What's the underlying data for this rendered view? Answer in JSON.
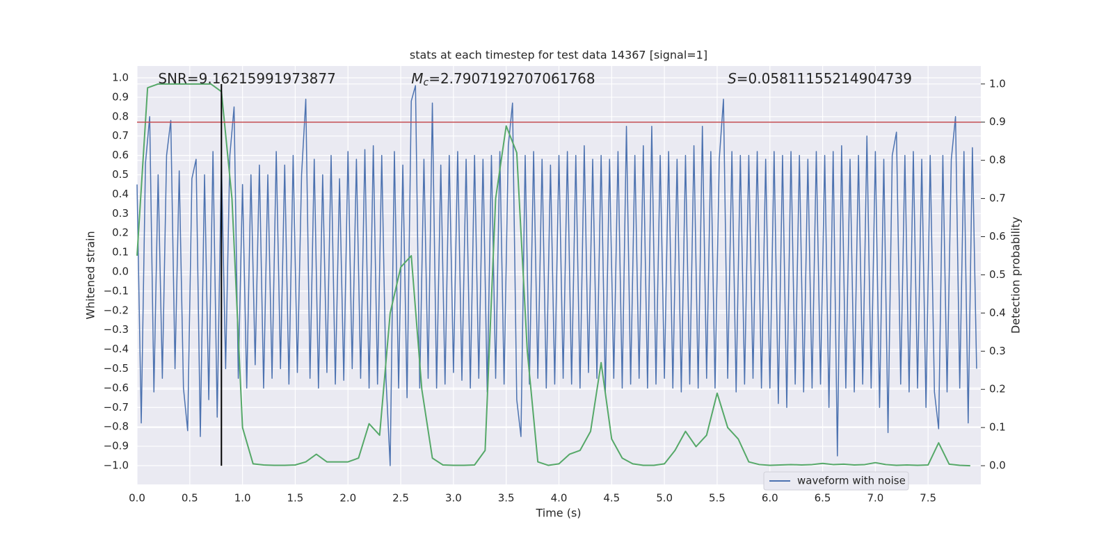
{
  "chart_data": {
    "type": "line",
    "title": "stats at each timestep for test data 14367 [signal=1]",
    "x_label": "Time (s)",
    "y_label": "Whitened strain",
    "y2_label": "Detection probability",
    "annotations": [
      {
        "text": "SNR=9.16215991973877",
        "x": 0.2,
        "y": 1.0
      },
      {
        "symbol": "M",
        "subscript": "c",
        "text": "=2.7907192707061768",
        "x": 2.6,
        "y": 1.0
      },
      {
        "symbol": "S",
        "text": "=0.05811155214904739",
        "x": 5.6,
        "y": 1.0
      }
    ],
    "legend": "lower right",
    "grid": true,
    "xlim": [
      0,
      8
    ],
    "ylim": [
      -1.097,
      1.061
    ],
    "y2lim": [
      -0.049,
      1.047
    ],
    "xticks": [
      {
        "value": 0,
        "label": "0.0"
      },
      {
        "value": 0.5,
        "label": "0.5"
      },
      {
        "value": 1,
        "label": "1.0"
      },
      {
        "value": 1.5,
        "label": "1.5"
      },
      {
        "value": 2,
        "label": "2.0"
      },
      {
        "value": 2.5,
        "label": "2.5"
      },
      {
        "value": 3,
        "label": "3.0"
      },
      {
        "value": 3.5,
        "label": "3.5"
      },
      {
        "value": 4,
        "label": "4.0"
      },
      {
        "value": 4.5,
        "label": "4.5"
      },
      {
        "value": 5,
        "label": "5.0"
      },
      {
        "value": 5.5,
        "label": "5.5"
      },
      {
        "value": 6,
        "label": "6.0"
      },
      {
        "value": 6.5,
        "label": "6.5"
      },
      {
        "value": 7,
        "label": "7.0"
      },
      {
        "value": 7.5,
        "label": "7.5"
      }
    ],
    "yticks": [
      {
        "value": -1,
        "label": "−1.0"
      },
      {
        "value": -0.9,
        "label": "−0.9"
      },
      {
        "value": -0.8,
        "label": "−0.8"
      },
      {
        "value": -0.7,
        "label": "−0.7"
      },
      {
        "value": -0.6,
        "label": "−0.6"
      },
      {
        "value": -0.5,
        "label": "−0.5"
      },
      {
        "value": -0.4,
        "label": "−0.4"
      },
      {
        "value": -0.3,
        "label": "−0.3"
      },
      {
        "value": -0.2,
        "label": "−0.2"
      },
      {
        "value": -0.1,
        "label": "−0.1"
      },
      {
        "value": 0,
        "label": "0.0"
      },
      {
        "value": 0.1,
        "label": "0.1"
      },
      {
        "value": 0.2,
        "label": "0.2"
      },
      {
        "value": 0.3,
        "label": "0.3"
      },
      {
        "value": 0.4,
        "label": "0.4"
      },
      {
        "value": 0.5,
        "label": "0.5"
      },
      {
        "value": 0.6,
        "label": "0.6"
      },
      {
        "value": 0.7,
        "label": "0.7"
      },
      {
        "value": 0.8,
        "label": "0.8"
      },
      {
        "value": 0.9,
        "label": "0.9"
      },
      {
        "value": 1,
        "label": "1.0"
      }
    ],
    "y2ticks": [
      {
        "value": 0,
        "label": "0.0"
      },
      {
        "value": 0.1,
        "label": "0.1"
      },
      {
        "value": 0.2,
        "label": "0.2"
      },
      {
        "value": 0.3,
        "label": "0.3"
      },
      {
        "value": 0.4,
        "label": "0.4"
      },
      {
        "value": 0.5,
        "label": "0.5"
      },
      {
        "value": 0.6,
        "label": "0.6"
      },
      {
        "value": 0.7,
        "label": "0.7"
      },
      {
        "value": 0.8,
        "label": "0.8"
      },
      {
        "value": 0.9,
        "label": "0.9"
      },
      {
        "value": 1,
        "label": "1.0"
      }
    ],
    "threshold": {
      "value": 0.9,
      "axis": "y2",
      "color": "#c44e52"
    },
    "vline": {
      "x": 0.8,
      "ymin": 0,
      "ymax": 1,
      "axis": "y2",
      "color": "#000000"
    },
    "series": [
      {
        "name": "waveform with noise",
        "color": "#4c72b0",
        "x": [
          0,
          0.04,
          0.08,
          0.12,
          0.16,
          0.2,
          0.24,
          0.28,
          0.32,
          0.36,
          0.4,
          0.44,
          0.48,
          0.52,
          0.56,
          0.6,
          0.64,
          0.68,
          0.72,
          0.76,
          0.8,
          0.84,
          0.88,
          0.92,
          0.96,
          1,
          1.04,
          1.08,
          1.12,
          1.16,
          1.2,
          1.24,
          1.28,
          1.32,
          1.36,
          1.4,
          1.44,
          1.48,
          1.52,
          1.56,
          1.6,
          1.64,
          1.68,
          1.72,
          1.76,
          1.8,
          1.84,
          1.88,
          1.92,
          1.96,
          2,
          2.04,
          2.08,
          2.12,
          2.16,
          2.2,
          2.24,
          2.28,
          2.32,
          2.36,
          2.4,
          2.44,
          2.48,
          2.52,
          2.56,
          2.6,
          2.64,
          2.68,
          2.72,
          2.76,
          2.8,
          2.84,
          2.88,
          2.92,
          2.96,
          3,
          3.04,
          3.08,
          3.12,
          3.16,
          3.2,
          3.24,
          3.28,
          3.32,
          3.36,
          3.4,
          3.44,
          3.48,
          3.52,
          3.56,
          3.6,
          3.64,
          3.68,
          3.72,
          3.76,
          3.8,
          3.84,
          3.88,
          3.92,
          3.96,
          4,
          4.04,
          4.08,
          4.12,
          4.16,
          4.2,
          4.24,
          4.28,
          4.32,
          4.36,
          4.4,
          4.44,
          4.48,
          4.52,
          4.56,
          4.6,
          4.64,
          4.68,
          4.72,
          4.76,
          4.8,
          4.84,
          4.88,
          4.92,
          4.96,
          5,
          5.04,
          5.08,
          5.12,
          5.16,
          5.2,
          5.24,
          5.28,
          5.32,
          5.36,
          5.4,
          5.44,
          5.48,
          5.52,
          5.56,
          5.6,
          5.64,
          5.68,
          5.72,
          5.76,
          5.8,
          5.84,
          5.88,
          5.92,
          5.96,
          6,
          6.04,
          6.08,
          6.12,
          6.16,
          6.2,
          6.24,
          6.28,
          6.32,
          6.36,
          6.4,
          6.44,
          6.48,
          6.52,
          6.56,
          6.6,
          6.64,
          6.68,
          6.72,
          6.76,
          6.8,
          6.84,
          6.88,
          6.92,
          6.96,
          7,
          7.04,
          7.08,
          7.12,
          7.16,
          7.2,
          7.24,
          7.28,
          7.32,
          7.36,
          7.4,
          7.44,
          7.48,
          7.52,
          7.56,
          7.6,
          7.64,
          7.68,
          7.72,
          7.76,
          7.8,
          7.84,
          7.88,
          7.92,
          7.96
        ],
        "values": [
          0.45,
          -0.78,
          0.56,
          0.8,
          -0.62,
          0.5,
          -0.55,
          0.6,
          0.78,
          -0.5,
          0.52,
          -0.6,
          -0.82,
          0.48,
          0.58,
          -0.85,
          0.5,
          -0.66,
          0.62,
          -0.75,
          0.57,
          -0.5,
          0.6,
          0.85,
          -0.55,
          0.45,
          -0.6,
          0.5,
          -0.48,
          0.55,
          -0.6,
          0.5,
          -0.55,
          0.62,
          -0.5,
          0.55,
          -0.58,
          0.6,
          -0.52,
          0.5,
          0.89,
          -0.55,
          0.58,
          -0.6,
          0.5,
          -0.52,
          0.6,
          -0.58,
          0.48,
          -0.56,
          0.62,
          -0.5,
          0.58,
          -0.55,
          0.63,
          -0.6,
          0.65,
          -0.58,
          0.6,
          -0.55,
          -1.0,
          0.62,
          -0.6,
          0.55,
          -0.65,
          0.88,
          0.96,
          -0.6,
          0.58,
          -0.55,
          0.87,
          -0.6,
          0.55,
          -0.58,
          0.6,
          -0.52,
          0.62,
          -0.56,
          0.58,
          -0.6,
          0.6,
          -0.55,
          0.58,
          -0.62,
          0.6,
          -0.55,
          0.62,
          -0.58,
          0.65,
          0.87,
          -0.66,
          -0.85,
          0.6,
          -0.58,
          0.62,
          -0.55,
          0.58,
          -0.6,
          0.55,
          -0.58,
          0.6,
          -0.55,
          0.62,
          -0.58,
          0.6,
          -0.6,
          0.65,
          -0.52,
          0.58,
          -0.55,
          0.6,
          -0.62,
          0.58,
          -0.55,
          0.62,
          -0.6,
          0.75,
          -0.58,
          0.6,
          -0.55,
          0.65,
          -0.6,
          0.75,
          -0.58,
          0.6,
          -0.55,
          0.62,
          -0.6,
          0.58,
          -0.62,
          0.6,
          -0.58,
          0.65,
          -0.6,
          0.75,
          -0.55,
          0.62,
          -0.6,
          0.58,
          0.89,
          -0.55,
          0.62,
          -0.62,
          0.6,
          -0.58,
          0.6,
          -0.55,
          0.62,
          -0.6,
          0.58,
          -0.6,
          0.62,
          -0.68,
          0.6,
          -0.7,
          0.62,
          -0.58,
          0.6,
          -0.62,
          0.58,
          -0.6,
          0.62,
          -0.58,
          0.6,
          -0.7,
          0.62,
          -0.95,
          0.65,
          -0.6,
          0.58,
          -0.62,
          0.6,
          -0.58,
          0.7,
          -0.6,
          0.62,
          -0.7,
          0.58,
          -0.83,
          0.6,
          0.72,
          -0.58,
          0.6,
          -0.62,
          0.62,
          -0.6,
          0.58,
          -0.7,
          0.6,
          -0.62,
          -0.81,
          0.6,
          -0.62,
          0.58,
          0.8,
          -0.6,
          0.62,
          -0.78,
          0.64,
          -0.5
        ]
      },
      {
        "color": "#55a868",
        "axis": "y2",
        "x": [
          0,
          0.1,
          0.2,
          0.3,
          0.4,
          0.5,
          0.6,
          0.7,
          0.8,
          0.9,
          1,
          1.1,
          1.2,
          1.3,
          1.4,
          1.5,
          1.6,
          1.7,
          1.8,
          1.9,
          2,
          2.1,
          2.2,
          2.3,
          2.4,
          2.5,
          2.6,
          2.7,
          2.8,
          2.9,
          3,
          3.1,
          3.2,
          3.3,
          3.4,
          3.5,
          3.6,
          3.7,
          3.8,
          3.9,
          4,
          4.1,
          4.2,
          4.3,
          4.4,
          4.5,
          4.6,
          4.7,
          4.8,
          4.9,
          5,
          5.1,
          5.2,
          5.3,
          5.4,
          5.5,
          5.6,
          5.7,
          5.8,
          5.9,
          6,
          6.1,
          6.2,
          6.3,
          6.4,
          6.5,
          6.6,
          6.7,
          6.8,
          6.9,
          7,
          7.1,
          7.2,
          7.3,
          7.4,
          7.5,
          7.6,
          7.7,
          7.8,
          7.9
        ],
        "values": [
          0.55,
          0.99,
          1.0,
          1.0,
          1.0,
          1.0,
          1.0,
          1.0,
          0.98,
          0.7,
          0.1,
          0.005,
          0.002,
          0.001,
          0.001,
          0.002,
          0.01,
          0.03,
          0.01,
          0.01,
          0.01,
          0.02,
          0.11,
          0.08,
          0.4,
          0.52,
          0.55,
          0.2,
          0.02,
          0.002,
          0.001,
          0.001,
          0.002,
          0.04,
          0.7,
          0.89,
          0.82,
          0.3,
          0.01,
          0.001,
          0.005,
          0.03,
          0.04,
          0.09,
          0.27,
          0.07,
          0.02,
          0.005,
          0.001,
          0.001,
          0.005,
          0.04,
          0.09,
          0.05,
          0.08,
          0.19,
          0.1,
          0.07,
          0.01,
          0.003,
          0.001,
          0.002,
          0.003,
          0.002,
          0.003,
          0.006,
          0.003,
          0.004,
          0.002,
          0.003,
          0.008,
          0.003,
          0.001,
          0.002,
          0.001,
          0.002,
          0.06,
          0.004,
          0.001,
          0
        ]
      }
    ]
  }
}
